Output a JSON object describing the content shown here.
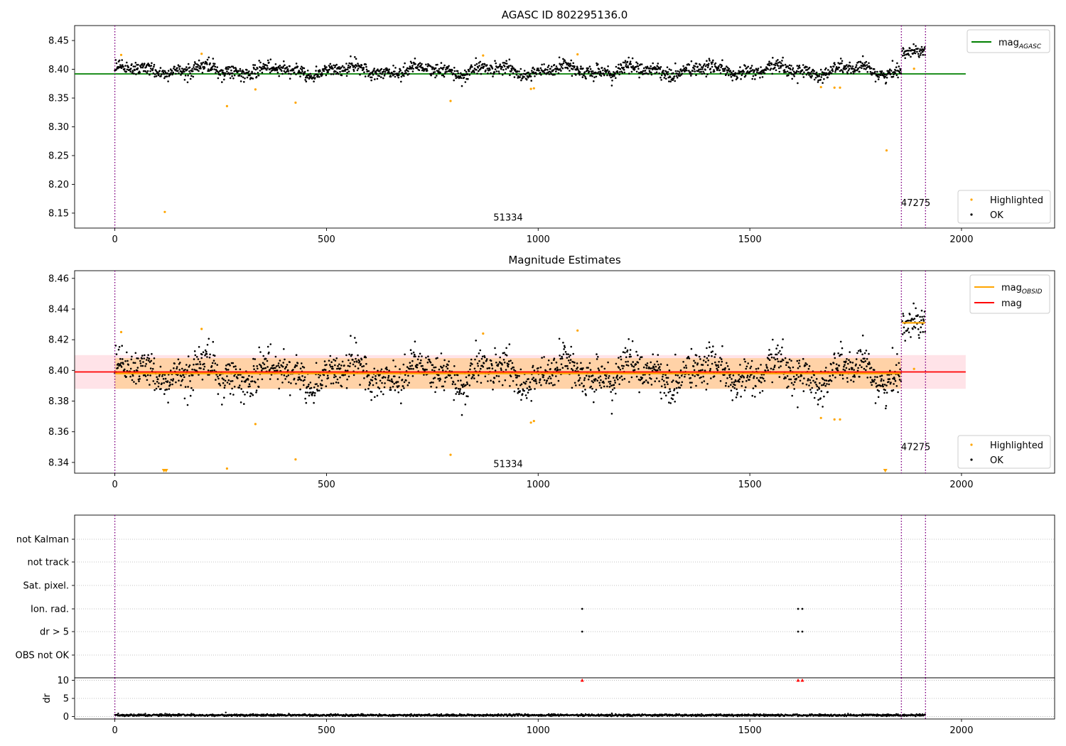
{
  "chart_data": [
    {
      "type": "scatter",
      "title": "AGASC ID 802295136.0",
      "xlim": [
        -95,
        2220
      ],
      "ylim": [
        8.124,
        8.476
      ],
      "xticks": [
        0,
        500,
        1000,
        1500,
        2000
      ],
      "yticks": [
        8.15,
        8.2,
        8.25,
        8.3,
        8.35,
        8.4,
        8.45
      ],
      "ytick_labels": [
        "8.15",
        "8.20",
        "8.25",
        "8.30",
        "8.35",
        "8.40",
        "8.45"
      ],
      "hline": {
        "name": "mag",
        "sub": "AGASC",
        "y": 8.392,
        "x": [
          -95,
          2010
        ],
        "color": "#008000"
      },
      "vlines": [
        0,
        1858,
        1915
      ],
      "vline_color": "#800080",
      "obsid_labels": [
        {
          "text": "51334",
          "x": 929,
          "y": 8.137
        },
        {
          "text": "47275",
          "x": 1892,
          "y": 8.162
        }
      ],
      "legend_lines": [
        {
          "name": "mag",
          "sub": "AGASC",
          "color": "#008000"
        }
      ],
      "legend_points": [
        {
          "name": "Highlighted",
          "color": "#ffa500"
        },
        {
          "name": "OK",
          "color": "#000000"
        }
      ],
      "segments": [
        {
          "x": [
            0,
            1857
          ],
          "mean": 8.398,
          "amp": 0.01,
          "noise": 0.006
        },
        {
          "x": [
            1860,
            1914
          ],
          "mean": 8.431,
          "amp": 0.004,
          "noise": 0.005
        }
      ],
      "highlighted": [
        {
          "x": 15,
          "y": 8.425
        },
        {
          "x": 118,
          "y": 8.152
        },
        {
          "x": 205,
          "y": 8.427
        },
        {
          "x": 265,
          "y": 8.336
        },
        {
          "x": 332,
          "y": 8.365
        },
        {
          "x": 427,
          "y": 8.342
        },
        {
          "x": 793,
          "y": 8.345
        },
        {
          "x": 870,
          "y": 8.424
        },
        {
          "x": 983,
          "y": 8.366
        },
        {
          "x": 990,
          "y": 8.367
        },
        {
          "x": 1093,
          "y": 8.426
        },
        {
          "x": 1668,
          "y": 8.369
        },
        {
          "x": 1700,
          "y": 8.368
        },
        {
          "x": 1713,
          "y": 8.368
        },
        {
          "x": 1823,
          "y": 8.259
        },
        {
          "x": 1888,
          "y": 8.401
        }
      ]
    },
    {
      "type": "scatter",
      "title": "Magnitude Estimates",
      "xlim": [
        -95,
        2220
      ],
      "ylim": [
        8.333,
        8.465
      ],
      "xticks": [
        0,
        500,
        1000,
        1500,
        2000
      ],
      "yticks": [
        8.34,
        8.36,
        8.38,
        8.4,
        8.42,
        8.44,
        8.46
      ],
      "ytick_labels": [
        "8.34",
        "8.36",
        "8.38",
        "8.40",
        "8.42",
        "8.44",
        "8.46"
      ],
      "hline": {
        "name": "mag",
        "y": 8.399,
        "x": [
          -95,
          2010
        ],
        "color": "#ff0000"
      },
      "band": {
        "y": [
          8.388,
          8.41
        ],
        "x": [
          -95,
          2010
        ],
        "color": "#ffc0cb"
      },
      "obsid_mags": [
        {
          "x": [
            0,
            1857
          ],
          "y": 8.398,
          "band": [
            8.388,
            8.408
          ]
        },
        {
          "x": [
            1860,
            1914
          ],
          "y": 8.431
        }
      ],
      "vlines": [
        0,
        1858,
        1915
      ],
      "vline_color": "#800080",
      "obsid_labels": [
        {
          "text": "51334",
          "x": 929,
          "y": 8.337
        },
        {
          "text": "47275",
          "x": 1892,
          "y": 8.348
        }
      ],
      "legend_lines": [
        {
          "name": "mag",
          "sub": "OBSID",
          "color": "#ffa500"
        },
        {
          "name": "mag",
          "color": "#ff0000"
        }
      ],
      "legend_points": [
        {
          "name": "Highlighted",
          "color": "#ffa500"
        },
        {
          "name": "OK",
          "color": "#000000"
        }
      ],
      "segments": [
        {
          "x": [
            0,
            1857
          ],
          "mean": 8.398,
          "amp": 0.01,
          "noise": 0.006
        },
        {
          "x": [
            1860,
            1914
          ],
          "mean": 8.431,
          "amp": 0.004,
          "noise": 0.005
        }
      ],
      "highlighted": [
        {
          "x": 15,
          "y": 8.425
        },
        {
          "x": 205,
          "y": 8.427
        },
        {
          "x": 265,
          "y": 8.336
        },
        {
          "x": 332,
          "y": 8.365
        },
        {
          "x": 427,
          "y": 8.342
        },
        {
          "x": 793,
          "y": 8.345
        },
        {
          "x": 870,
          "y": 8.424
        },
        {
          "x": 983,
          "y": 8.366
        },
        {
          "x": 990,
          "y": 8.367
        },
        {
          "x": 1093,
          "y": 8.426
        },
        {
          "x": 1668,
          "y": 8.369
        },
        {
          "x": 1700,
          "y": 8.368
        },
        {
          "x": 1713,
          "y": 8.368
        },
        {
          "x": 1888,
          "y": 8.401
        }
      ],
      "clipped": [
        {
          "x": 116
        },
        {
          "x": 121
        },
        {
          "x": 1820
        }
      ]
    },
    {
      "type": "scatter",
      "xlim": [
        -95,
        2220
      ],
      "categories": [
        "not Kalman",
        "not track",
        "Sat. pixel.",
        "Ion. rad.",
        "dr > 5",
        "OBS not OK"
      ],
      "flags": [
        {
          "category": "Ion. rad.",
          "x": [
            1104,
            1614,
            1624
          ]
        },
        {
          "category": "dr > 5",
          "x": [
            1104,
            1614,
            1624
          ]
        }
      ],
      "vlines": [
        0,
        1858,
        1915
      ],
      "vline_color": "#800080"
    },
    {
      "type": "line",
      "xlim": [
        -95,
        2220
      ],
      "ylim": [
        -0.7,
        10.7
      ],
      "ylabel": "dr",
      "xticks": [
        0,
        500,
        1000,
        1500,
        2000
      ],
      "yticks": [
        0,
        5,
        10
      ],
      "ytick_labels": [
        "0",
        "5",
        "10"
      ],
      "dr_mean": 0.35,
      "dr_spikes": [
        {
          "x": 262,
          "y": 1.1
        }
      ],
      "clipped_markers": [
        {
          "x": 1104,
          "y": 10
        },
        {
          "x": 1614,
          "y": 10
        },
        {
          "x": 1624,
          "y": 10
        }
      ],
      "vlines": [
        0,
        1858,
        1915
      ],
      "vline_color": "#800080"
    }
  ]
}
